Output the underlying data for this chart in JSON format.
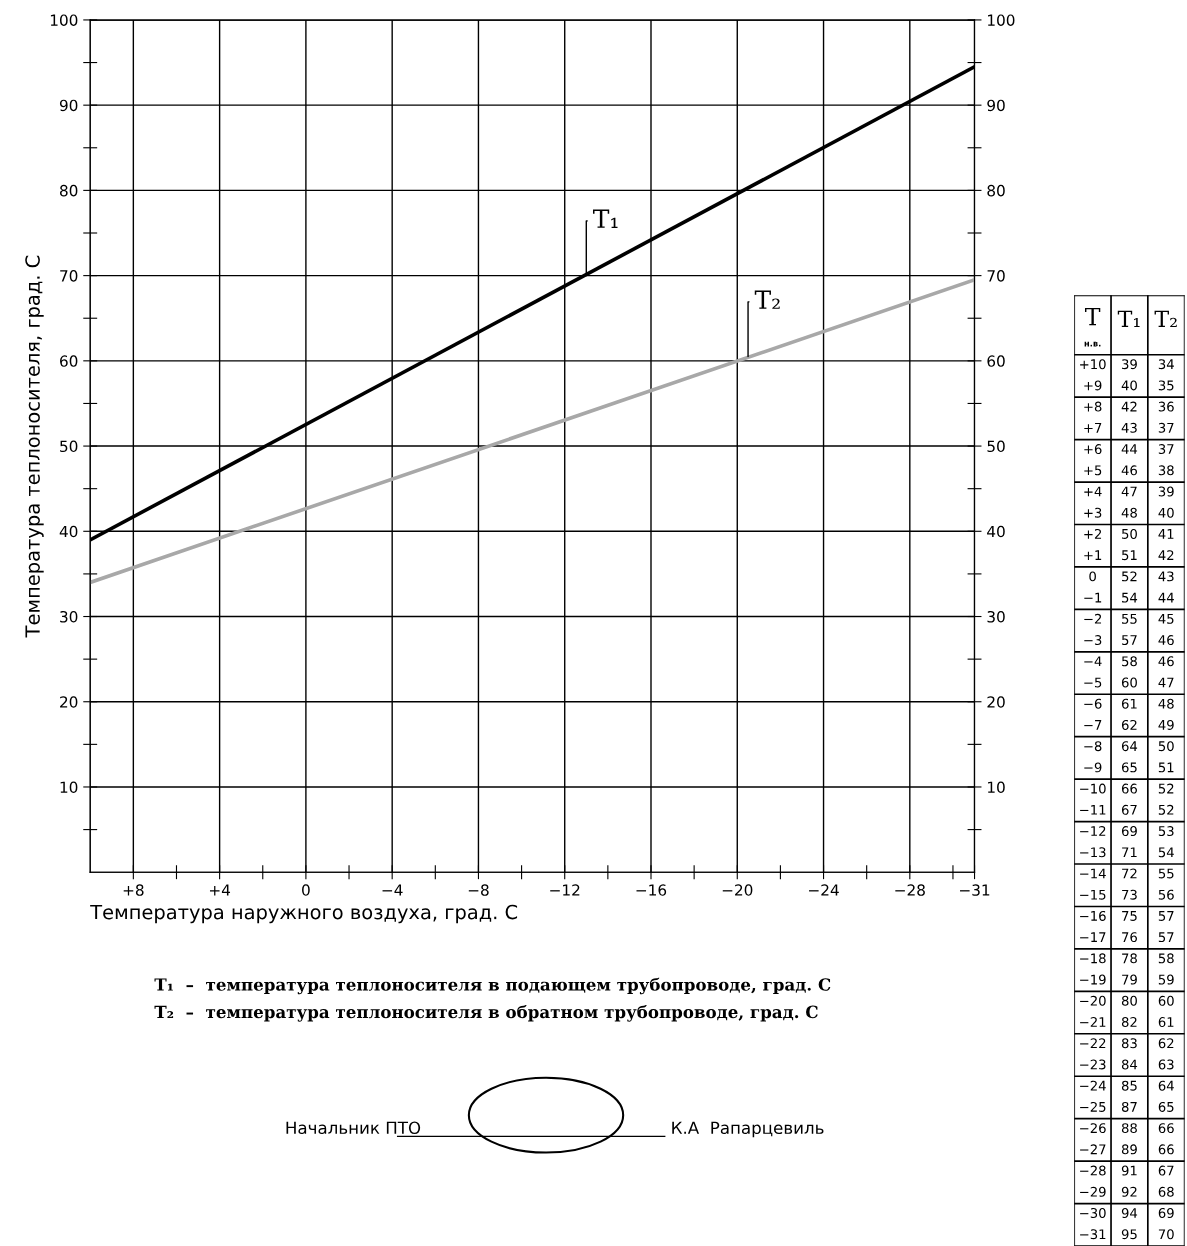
{
  "chart_data": [
    {
      "type": "line",
      "xlabel": "Температура наружного воздуха, град. С",
      "ylabel": "Температура теплоносителя, град. С",
      "x": [
        10,
        -31
      ],
      "series": [
        {
          "color": "#000000",
          "values": [
            39,
            94.5
          ]
        },
        {
          "color": "#a8a8a8",
          "values": [
            34,
            69.5
          ]
        }
      ],
      "xlim": [
        10,
        -31
      ],
      "xticks": [
        {
          "value": 8,
          "label": "+8"
        },
        {
          "value": 6,
          "label": null
        },
        {
          "value": 4,
          "label": "+4"
        },
        {
          "value": 2,
          "label": null
        },
        0,
        {
          "value": -2,
          "label": null
        },
        {
          "value": -4,
          "label": "−4"
        },
        {
          "value": -6,
          "label": null
        },
        {
          "value": -8,
          "label": "−8"
        },
        {
          "value": -10,
          "label": null
        },
        {
          "value": -12,
          "label": "−12"
        },
        {
          "value": -14,
          "label": null
        },
        {
          "value": -16,
          "label": "−16"
        },
        {
          "value": -18,
          "label": null
        },
        {
          "value": -20,
          "label": "−20"
        },
        {
          "value": -22,
          "label": null
        },
        {
          "value": -24,
          "label": "−24"
        },
        {
          "value": -26,
          "label": null
        },
        {
          "value": -28,
          "label": "−28"
        },
        {
          "value": -30,
          "label": null
        },
        {
          "value": -31,
          "label": "−31"
        }
      ],
      "ylim": [
        0,
        100
      ],
      "yticks": [
        {
          "value": 5,
          "label": null
        },
        10,
        {
          "value": 15,
          "label": null
        },
        20,
        {
          "value": 25,
          "label": null
        },
        30,
        {
          "value": 35,
          "label": null
        },
        40,
        {
          "value": 45,
          "label": null
        },
        50,
        {
          "value": 55,
          "label": null
        },
        60,
        {
          "value": 65,
          "label": null
        },
        70,
        {
          "value": 75,
          "label": null
        },
        80,
        {
          "value": 85,
          "label": null
        },
        90,
        {
          "value": 95,
          "label": null
        },
        100
      ],
      "y2lim": [
        0,
        100
      ],
      "y2ticks": [
        {
          "value": 5,
          "label": null
        },
        10,
        {
          "value": 15,
          "label": null
        },
        20,
        {
          "value": 25,
          "label": null
        },
        30,
        {
          "value": 35,
          "label": null
        },
        40,
        {
          "value": 45,
          "label": null
        },
        50,
        {
          "value": 55,
          "label": null
        },
        60,
        {
          "value": 65,
          "label": null
        },
        70,
        {
          "value": 75,
          "label": null
        },
        80,
        {
          "value": 85,
          "label": null
        },
        90,
        {
          "value": 95,
          "label": null
        },
        100
      ],
      "grid": true,
      "annotations": [
        {
          "text": "T₁",
          "x": -13,
          "y": 70
        },
        {
          "text": "T₂",
          "x": -20.5,
          "y": 60.5
        },
        "T₁  –  температура теплоносителя в подающем трубопроводе, град. С",
        "T₂  –  температура теплоносителя в обратном трубопроводе, град. С",
        "Начальник ПТО",
        "К.А  Рапарцевиль"
      ]
    },
    {
      "type": "heatmap",
      "ylabel": "Tн.в.",
      "data_labels": true,
      "categories": [
        "T₁",
        "T₂"
      ],
      "y_categories": [
        "+10",
        "+9",
        "+8",
        "+7",
        "+6",
        "+5",
        "+4",
        "+3",
        "+2",
        "+1",
        "0",
        "−1",
        "−2",
        "−3",
        "−4",
        "−5",
        "−6",
        "−7",
        "−8",
        "−9",
        "−10",
        "−11",
        "−12",
        "−13",
        "−14",
        "−15",
        "−16",
        "−17",
        "−18",
        "−19",
        "−20",
        "−21",
        "−22",
        "−23",
        "−24",
        "−25",
        "−26",
        "−27",
        "−28",
        "−29",
        "−30",
        "−31"
      ],
      "cells": [
        [
          39,
          34
        ],
        [
          40,
          35
        ],
        [
          42,
          36
        ],
        [
          43,
          37
        ],
        [
          44,
          37
        ],
        [
          46,
          38
        ],
        [
          47,
          39
        ],
        [
          48,
          40
        ],
        [
          50,
          41
        ],
        [
          51,
          42
        ],
        [
          52,
          43
        ],
        [
          54,
          44
        ],
        [
          55,
          45
        ],
        [
          57,
          46
        ],
        [
          58,
          46
        ],
        [
          60,
          47
        ],
        [
          61,
          48
        ],
        [
          62,
          49
        ],
        [
          64,
          50
        ],
        [
          65,
          51
        ],
        [
          66,
          52
        ],
        [
          67,
          52
        ],
        [
          69,
          53
        ],
        [
          71,
          54
        ],
        [
          72,
          55
        ],
        [
          73,
          56
        ],
        [
          75,
          57
        ],
        [
          76,
          57
        ],
        [
          78,
          58
        ],
        [
          79,
          59
        ],
        [
          80,
          60
        ],
        [
          82,
          61
        ],
        [
          83,
          62
        ],
        [
          84,
          63
        ],
        [
          85,
          64
        ],
        [
          87,
          65
        ],
        [
          88,
          66
        ],
        [
          89,
          66
        ],
        [
          91,
          67
        ],
        [
          92,
          68
        ],
        [
          94,
          69
        ],
        [
          95,
          70
        ]
      ]
    }
  ]
}
